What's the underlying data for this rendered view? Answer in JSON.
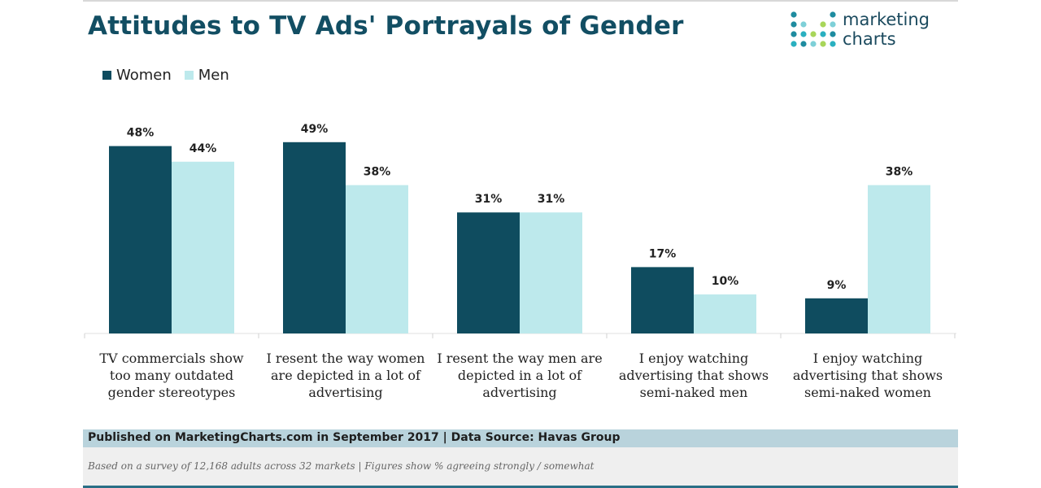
{
  "header": {
    "title": "Attitudes to TV Ads' Portrayals of Gender"
  },
  "logo": {
    "line1": "marketing",
    "line2": "charts",
    "icon": "dot-grid-logo-icon"
  },
  "colors": {
    "women": "#0f4c5f",
    "men": "#bde9ec",
    "title": "#124e63",
    "footer_band": "#b9d3dc"
  },
  "chart_data": {
    "type": "bar",
    "title": "Attitudes to TV Ads' Portrayals of Gender",
    "xlabel": "",
    "ylabel": "",
    "ylim": [
      0,
      60
    ],
    "grid": false,
    "legend_position": "top-left",
    "categories": [
      [
        "TV commercials show",
        "too many outdated",
        "gender stereotypes"
      ],
      [
        "I resent the way women",
        "are depicted in a lot of",
        "advertising"
      ],
      [
        "I resent the way men are",
        "depicted in a lot of",
        "advertising"
      ],
      [
        "I enjoy watching",
        "advertising that shows",
        "semi-naked men"
      ],
      [
        "I enjoy watching",
        "advertising that shows",
        "semi-naked women"
      ]
    ],
    "series": [
      {
        "name": "Women",
        "values": [
          48,
          49,
          31,
          17,
          9
        ],
        "labels": [
          "48%",
          "49%",
          "31%",
          "17%",
          "9%"
        ]
      },
      {
        "name": "Men",
        "values": [
          44,
          38,
          31,
          10,
          38
        ],
        "labels": [
          "44%",
          "38%",
          "31%",
          "10%",
          "38%"
        ]
      }
    ]
  },
  "footer": {
    "published": "Published on MarketingCharts.com in September 2017 | Data Source: Havas Group",
    "note": "Based on a survey of 12,168 adults across 32 markets | Figures show % agreeing strongly / somewhat"
  }
}
